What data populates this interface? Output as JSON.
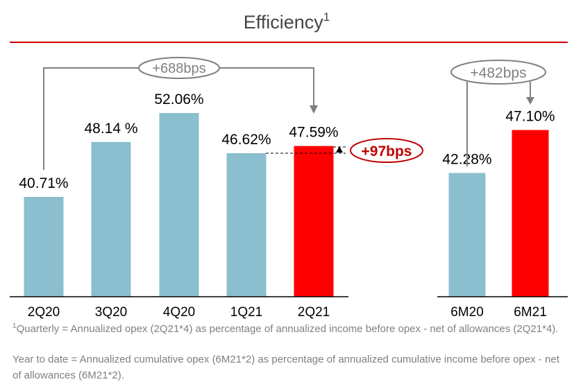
{
  "chart_data": [
    {
      "type": "bar",
      "title": "Efficiency",
      "title_superscript": "1",
      "categories": [
        "2Q20",
        "3Q20",
        "4Q20",
        "1Q21",
        "2Q21"
      ],
      "values": [
        40.71,
        48.14,
        52.06,
        46.62,
        47.59
      ],
      "value_labels": [
        "40.71%",
        "48.14 %",
        "52.06%",
        "46.62%",
        "47.59%"
      ],
      "highlight": [
        false,
        false,
        false,
        false,
        true
      ],
      "ylim": [
        27.2,
        60
      ],
      "annotations": [
        {
          "text": "+688bps",
          "from": "2Q20",
          "to": "2Q21"
        },
        {
          "text": "+97bps",
          "from": "1Q21",
          "to": "2Q21"
        }
      ]
    },
    {
      "type": "bar",
      "categories": [
        "6M20",
        "6M21"
      ],
      "values": [
        42.28,
        47.1
      ],
      "value_labels": [
        "42.28%",
        "47.10%"
      ],
      "highlight": [
        false,
        true
      ],
      "ylim": [
        28.4,
        60
      ],
      "annotations": [
        {
          "text": "+482bps",
          "from": "6M20",
          "to": "6M21"
        }
      ]
    }
  ],
  "colors": {
    "bar": "#8bbfcf",
    "highlight": "#ff0000",
    "rule": "#cc0000",
    "annotation": "#808080",
    "annotation_red": "#c00000"
  },
  "footnotes": {
    "sup": "1",
    "line1": "Quarterly = Annualized opex (2Q21*4) as percentage of annualized income before opex - net of allowances (2Q21*4).",
    "line2": "Year to date = Annualized cumulative opex (6M21*2) as percentage of annualized cumulative income before opex - net of allowances (6M21*2)."
  }
}
